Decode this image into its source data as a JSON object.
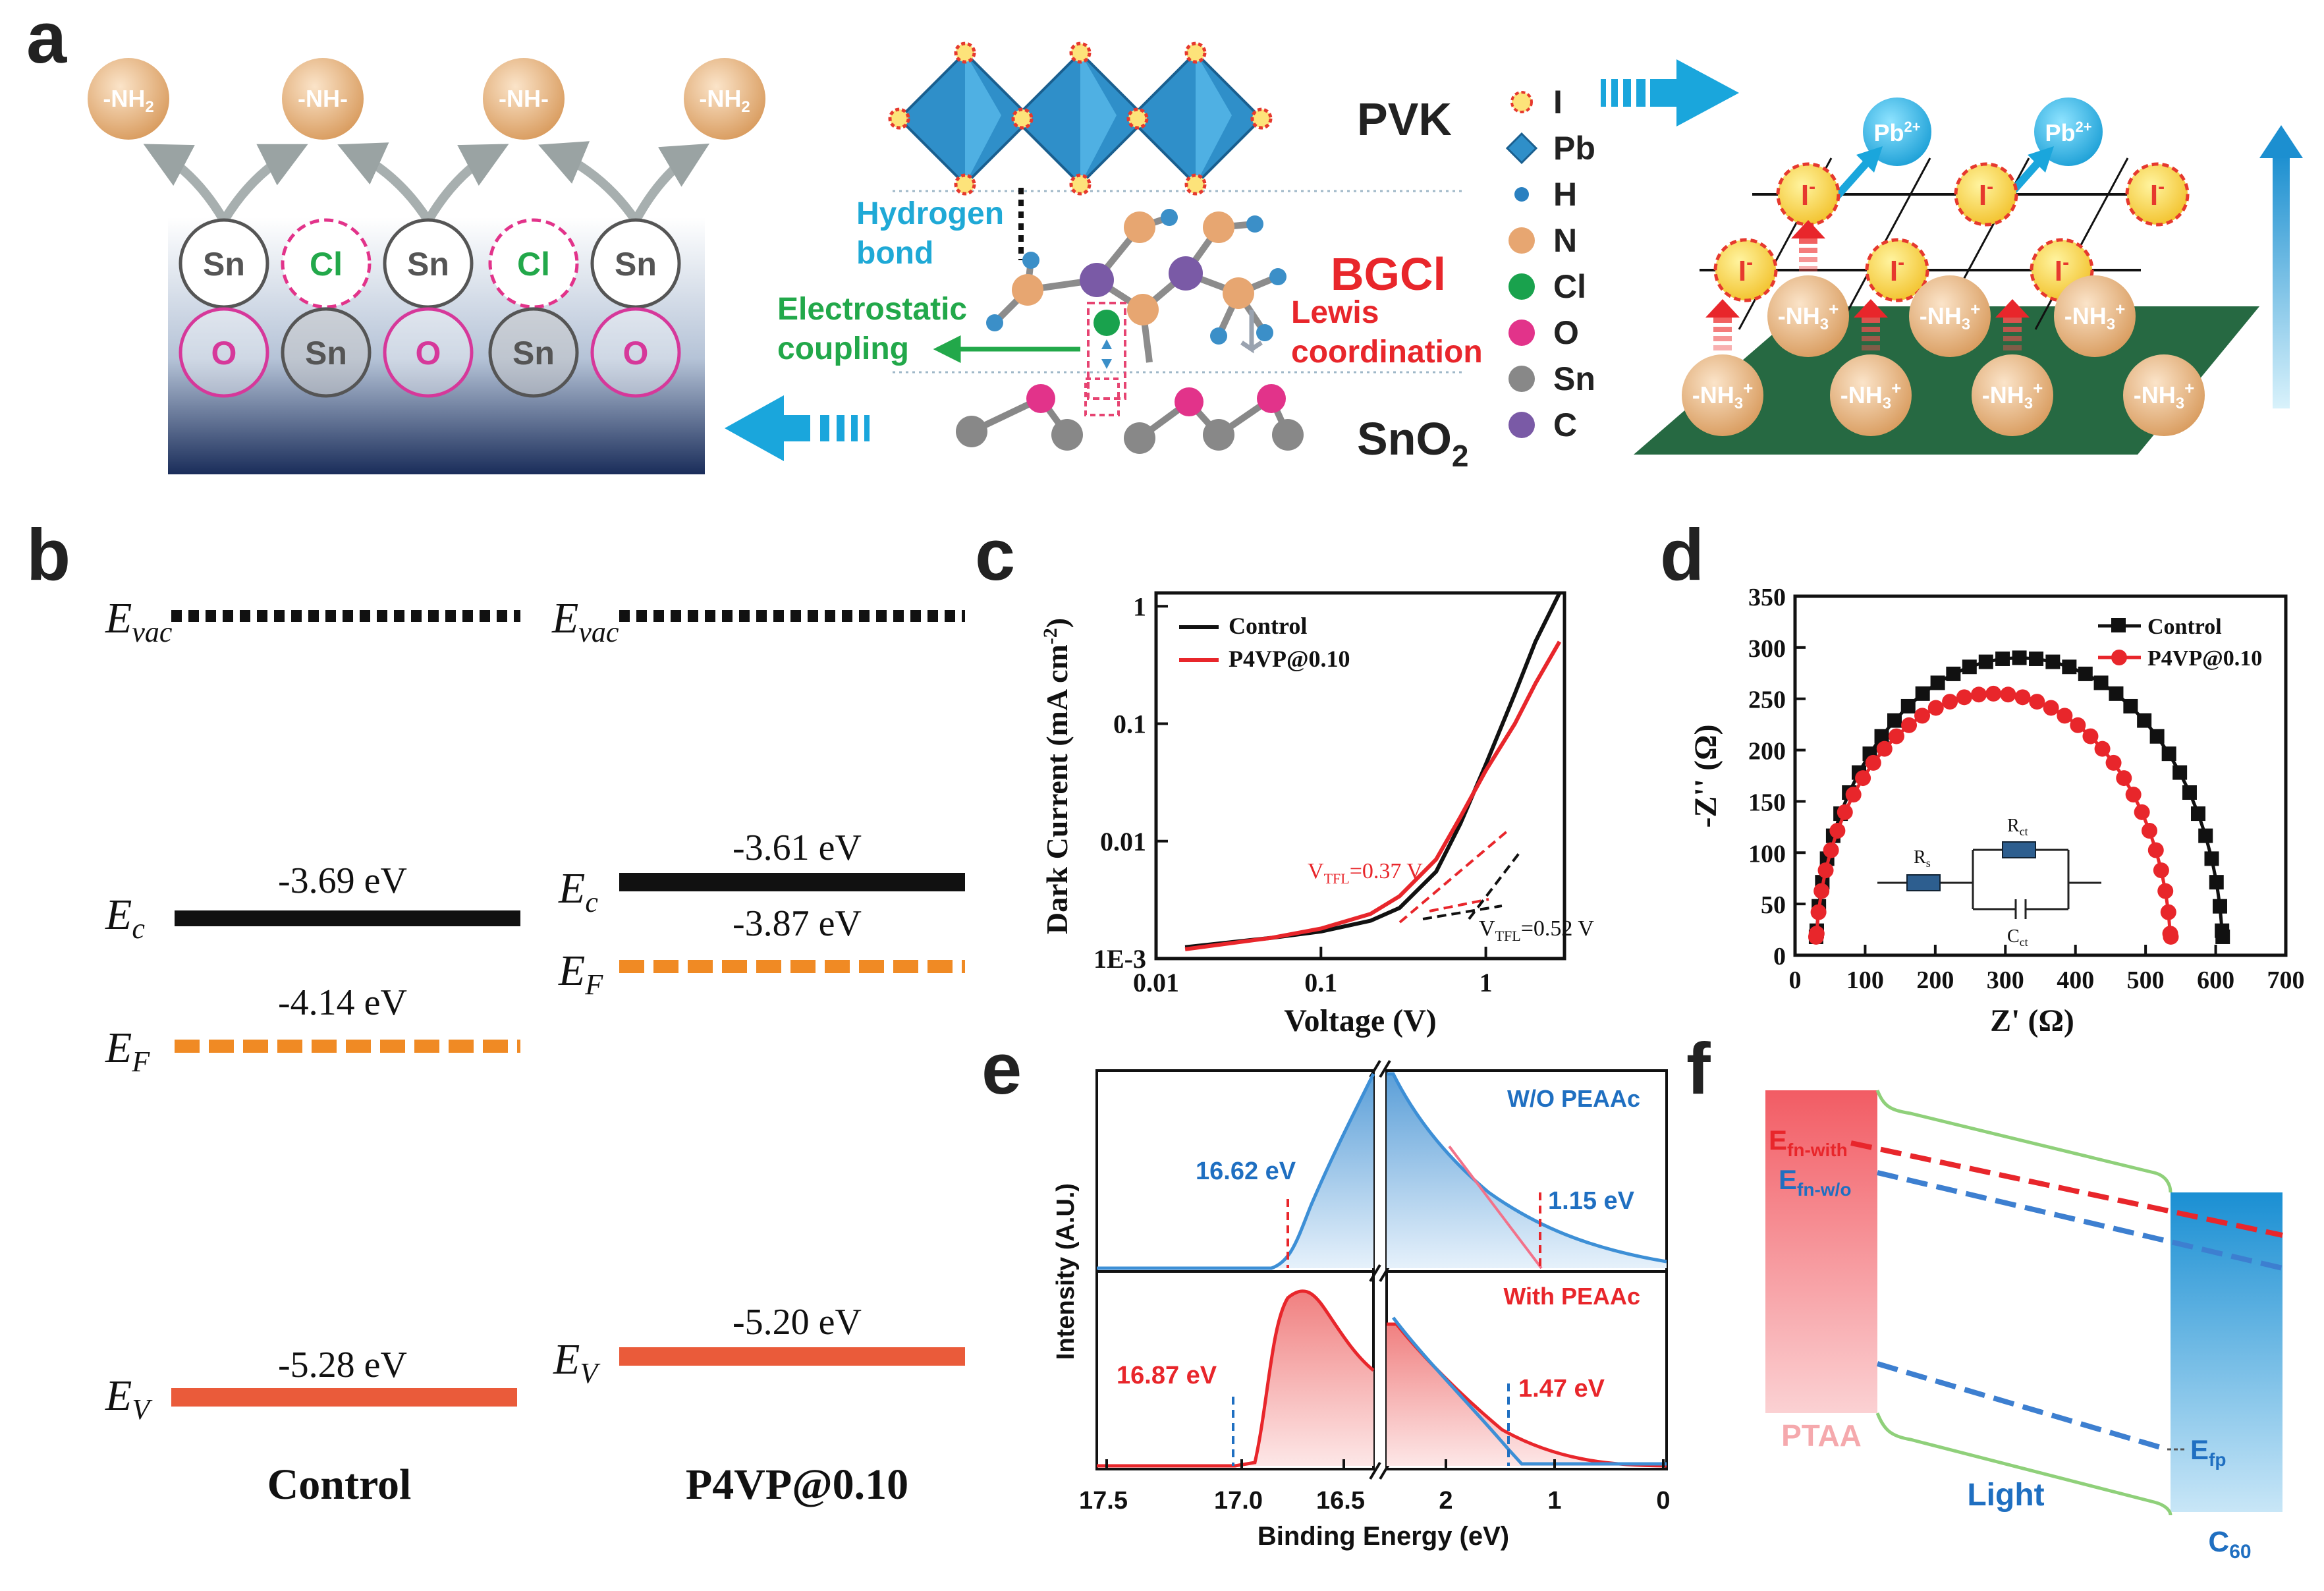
{
  "panel_labels": {
    "a": "a",
    "b": "b",
    "c": "c",
    "d": "d",
    "e": "e",
    "f": "f"
  },
  "colors": {
    "red": "#e8262b",
    "black": "#111111",
    "orange": "#f08a24",
    "cyan": "#1aa6dc",
    "blue": "#1f6fc1",
    "green": "#22a84a"
  },
  "panel_a": {
    "groups": [
      "-NH2",
      "-NH-",
      "-NH-",
      "-NH2"
    ],
    "top_row": [
      "Sn",
      "Cl",
      "Sn",
      "Cl",
      "Sn"
    ],
    "bottom_row": [
      "O",
      "Sn",
      "O",
      "Sn",
      "O"
    ],
    "pvk": "PVK",
    "bgcl": "BGCl",
    "sno2": "SnO2",
    "hydrogen_bond": [
      "Hydrogen",
      "bond"
    ],
    "electrostatic": [
      "Electrostatic",
      "coupling"
    ],
    "lewis": [
      "Lewis",
      "coordination"
    ],
    "legend": [
      "I",
      "Pb",
      "H",
      "N",
      "Cl",
      "O",
      "Sn",
      "C"
    ],
    "pb_ion": "Pb2+",
    "iodide": "I-",
    "nh3_label": "-NH3+",
    "nh3_count": 7
  },
  "panel_b": {
    "evac": "Evac",
    "ec": "Ec",
    "ef": "EF",
    "ev": "EV",
    "control": {
      "label": "Control",
      "ec": "-3.69 eV",
      "ef": "-4.14 eV",
      "ev": "-5.28 eV"
    },
    "p4vp": {
      "label": "P4VP@0.10",
      "ec": "-3.61 eV",
      "ef": "-3.87 eV",
      "ev": "-5.20 eV"
    }
  },
  "chart_data": [
    {
      "panel": "c",
      "type": "line",
      "xscale": "log",
      "yscale": "log",
      "xlabel": "Voltage (V)",
      "ylabel": "Dark Current (mA cm-2)",
      "xlim": [
        0.01,
        3
      ],
      "ylim": [
        0.001,
        1.3
      ],
      "xticks": [
        "0.01",
        "0.1",
        "1"
      ],
      "yticks": [
        "1E-3",
        "0.01",
        "0.1",
        "1"
      ],
      "series": [
        {
          "name": "Control",
          "color": "#111111",
          "x": [
            0.015,
            0.05,
            0.1,
            0.2,
            0.3,
            0.5,
            0.7,
            1.0,
            1.5,
            2.0,
            2.8
          ],
          "y": [
            0.00125,
            0.0015,
            0.0017,
            0.0021,
            0.0027,
            0.0055,
            0.014,
            0.045,
            0.18,
            0.5,
            1.3
          ]
        },
        {
          "name": "P4VP@0.10",
          "color": "#e8262b",
          "x": [
            0.015,
            0.05,
            0.1,
            0.2,
            0.3,
            0.5,
            0.7,
            1.0,
            1.5,
            2.0,
            2.8
          ],
          "y": [
            0.0012,
            0.0015,
            0.0018,
            0.0024,
            0.0034,
            0.007,
            0.016,
            0.04,
            0.1,
            0.22,
            0.5
          ]
        }
      ],
      "annotations": [
        {
          "text": "VTFL=0.37 V",
          "label": "V",
          "sub": "TFL",
          "value": "=0.37 V",
          "color": "#e8262b"
        },
        {
          "text": "VTFL=0.52 V",
          "label": "V",
          "sub": "TFL",
          "value": "=0.52 V",
          "color": "#111111"
        }
      ]
    },
    {
      "panel": "d",
      "type": "scatter",
      "xlabel": "Z' (Ω)",
      "ylabel": "-Z'' (Ω)",
      "xlim": [
        0,
        700
      ],
      "ylim": [
        0,
        350
      ],
      "xticks": [
        "0",
        "100",
        "200",
        "300",
        "400",
        "500",
        "600",
        "700"
      ],
      "yticks": [
        "0",
        "50",
        "100",
        "150",
        "200",
        "250",
        "300",
        "350"
      ],
      "series": [
        {
          "name": "Control",
          "color": "#111111",
          "marker": "square",
          "center": 320,
          "radius": 290,
          "ymax": 290
        },
        {
          "name": "P4VP@0.10",
          "color": "#e8262b",
          "marker": "circle",
          "center": 283,
          "radius": 253,
          "ymax": 255
        }
      ],
      "inset_labels": {
        "rs": "Rs",
        "rct": "Rct",
        "cct": "Cct"
      }
    },
    {
      "panel": "e",
      "type": "area",
      "xlabel": "Binding Energy  (eV)",
      "ylabel": "Intensity (A.U.)",
      "xticks_left": [
        "17.5",
        "17.0",
        "16.5"
      ],
      "xticks_right": [
        "2",
        "1",
        "0"
      ],
      "top": {
        "label": "W/O PEAAc",
        "cutoff": "16.62 eV",
        "onset": "1.15 eV"
      },
      "bottom": {
        "label": "With PEAAc",
        "cutoff": "16.87 eV",
        "onset": "1.47 eV"
      }
    }
  ],
  "panel_f": {
    "efn_with": "Efn-with",
    "efn_wo": "Efn-w/o",
    "efp": "Efp",
    "ptaa": "PTAA",
    "light": "Light",
    "c60": "C60"
  }
}
